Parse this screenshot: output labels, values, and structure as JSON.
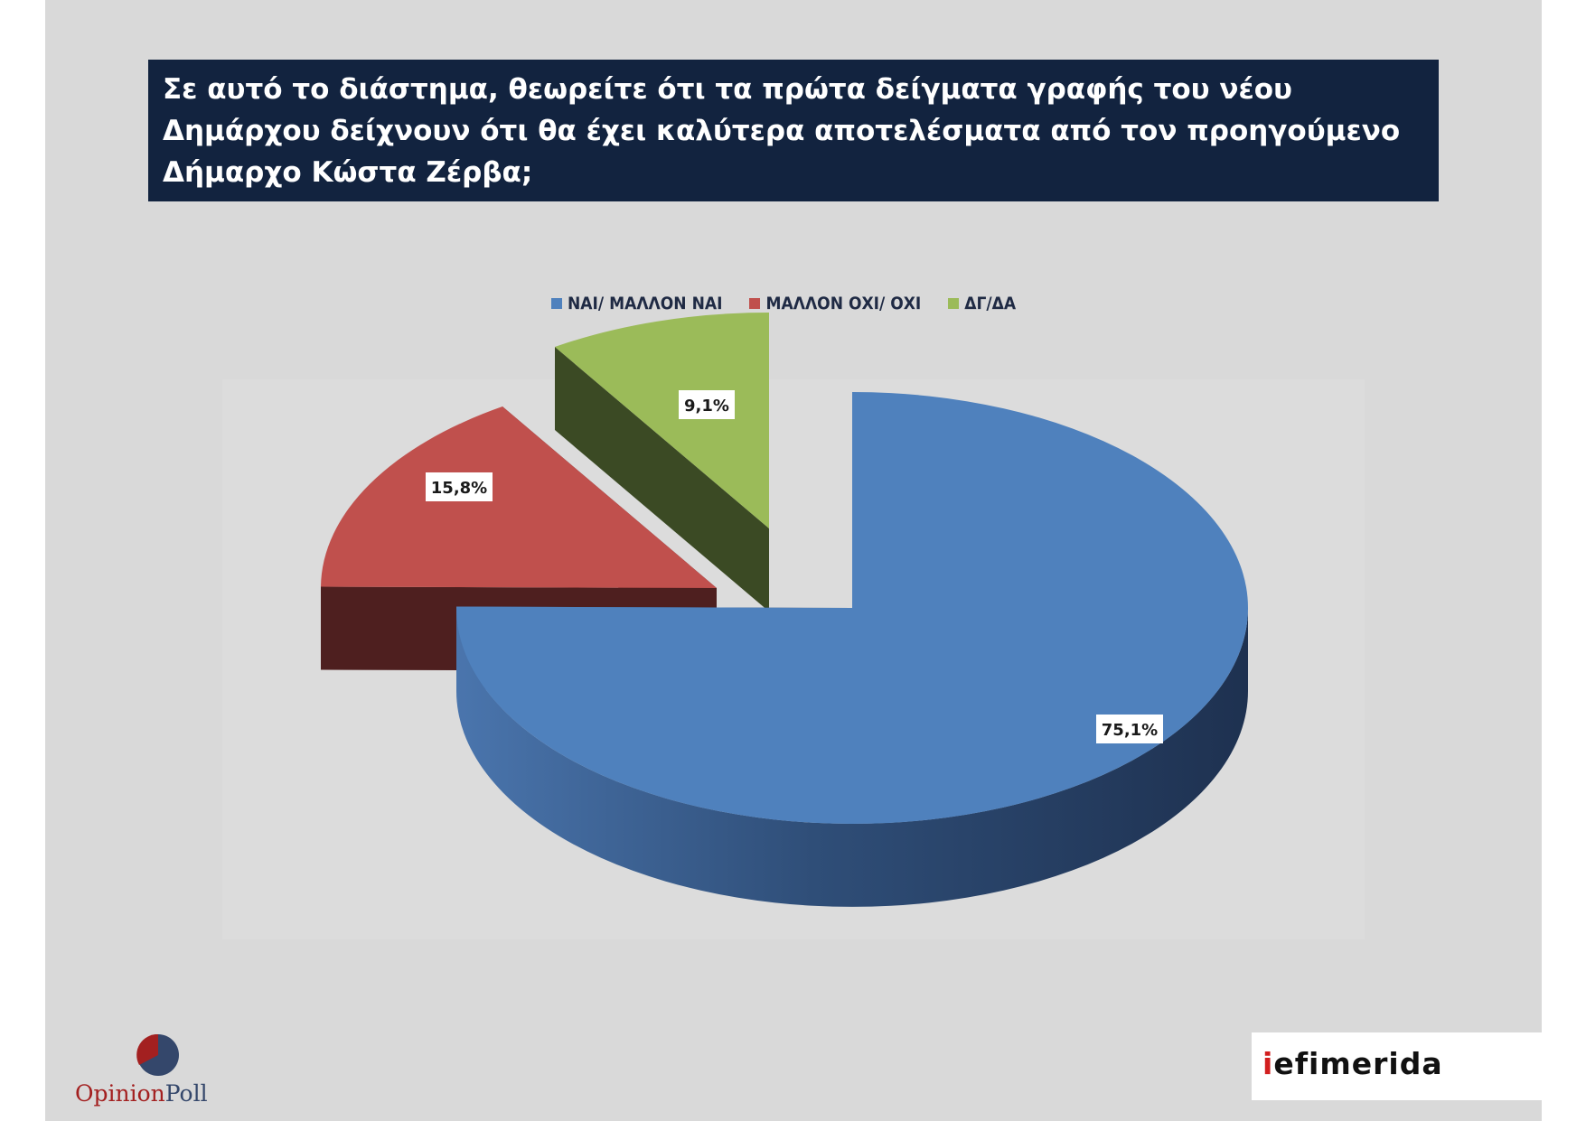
{
  "title": "Σε αυτό το διάστημα, θεωρείτε ότι τα πρώτα δείγματα γραφής του νέου Δημάρχου δείχνουν ότι θα έχει καλύτερα αποτελέσματα από τον προηγούμενο Δήμαρχο Κώστα Ζέρβα;",
  "chart_data": {
    "type": "pie",
    "style": "3d-exploded",
    "legend_position": "top",
    "slices": [
      {
        "label": "ΝΑΙ/ ΜΑΛΛΟΝ ΝΑΙ",
        "value": 75.1,
        "display": "75,1%",
        "color": "#4f81bd"
      },
      {
        "label": "ΜΑΛΛΟΝ ΟΧΙ/ ΟΧΙ",
        "value": 15.8,
        "display": "15,8%",
        "color": "#c0504d"
      },
      {
        "label": "ΔΓ/ΔΑ",
        "value": 9.1,
        "display": "9,1%",
        "color": "#9bbb59"
      }
    ]
  },
  "logos": {
    "opinion_poll": {
      "part1": "Opinion",
      "part2": "Poll"
    },
    "iefimerida": {
      "part1": "i",
      "part2": "efimerida"
    }
  }
}
